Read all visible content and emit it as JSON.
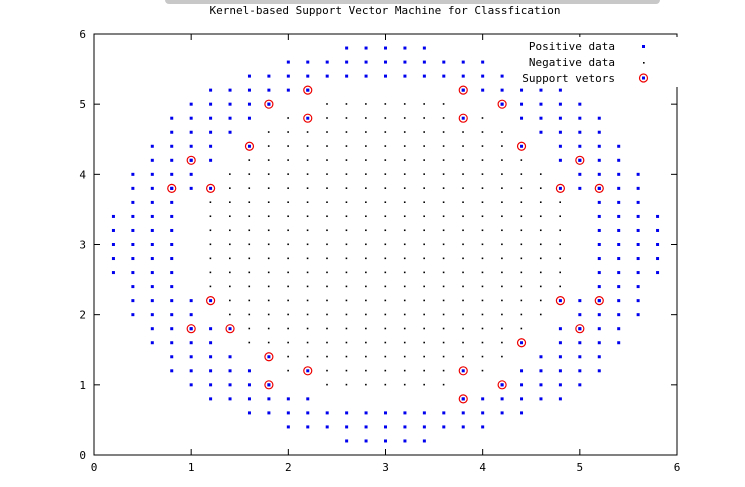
{
  "chart_data": {
    "type": "scatter",
    "title": "Kernel-based Support Vector Machine for Classfication",
    "xlabel": "",
    "ylabel": "",
    "xlim": [
      0,
      6
    ],
    "ylim": [
      0,
      6
    ],
    "x_ticks": [
      "0",
      "1",
      "2",
      "3",
      "4",
      "5",
      "6"
    ],
    "y_ticks": [
      "0",
      "1",
      "2",
      "3",
      "4",
      "5",
      "6"
    ],
    "legend_position": "top-right",
    "grid": false,
    "series": [
      {
        "name": "Positive data",
        "color": "#0000ee",
        "marker": "square",
        "grid_step": 0.2,
        "region": "outer elliptical ring, centre (3, 3), inner radii about (2.1, 2.3), outer radii about (2.85, 2.85), clipped to x 0.2-5.8, y 0.2-5.8"
      },
      {
        "name": "Negative data",
        "color": "#000000",
        "marker": "dot",
        "grid_step": 0.2,
        "region": "inner ellipse, centre (3, 3), radii about (1.9, 2.15)"
      },
      {
        "name": "Support vetors",
        "color": "#ee0000",
        "marker": "circle",
        "points": [
          [
            1.8,
            5.0
          ],
          [
            2.2,
            5.2
          ],
          [
            2.2,
            4.8
          ],
          [
            3.8,
            5.2
          ],
          [
            3.8,
            4.8
          ],
          [
            4.2,
            5.0
          ],
          [
            1.6,
            4.4
          ],
          [
            4.4,
            4.4
          ],
          [
            1.0,
            4.2
          ],
          [
            5.0,
            4.2
          ],
          [
            0.8,
            3.8
          ],
          [
            1.2,
            3.8
          ],
          [
            4.8,
            3.8
          ],
          [
            5.2,
            3.8
          ],
          [
            1.2,
            2.2
          ],
          [
            4.8,
            2.2
          ],
          [
            5.2,
            2.2
          ],
          [
            1.0,
            1.8
          ],
          [
            1.4,
            1.8
          ],
          [
            5.0,
            1.8
          ],
          [
            4.4,
            1.6
          ],
          [
            1.8,
            1.4
          ],
          [
            2.2,
            1.2
          ],
          [
            3.8,
            1.2
          ],
          [
            1.8,
            1.0
          ],
          [
            4.2,
            1.0
          ],
          [
            3.8,
            0.8
          ]
        ]
      }
    ]
  }
}
